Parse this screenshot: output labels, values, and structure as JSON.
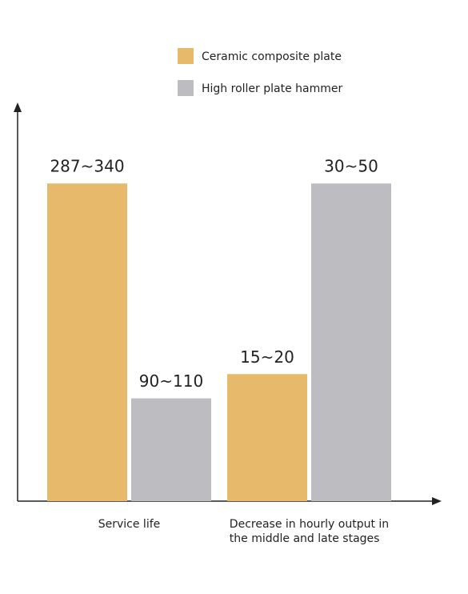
{
  "chart_data": {
    "type": "bar",
    "categories": [
      "Service life",
      "Decrease in hourly output in\nthe middle and late stages"
    ],
    "category_ylims": [
      [
        0,
        425
      ],
      [
        0,
        62.5
      ]
    ],
    "series": [
      {
        "name": "Ceramic composite plate",
        "color": "#e6b96b",
        "values": [
          340,
          20
        ],
        "value_labels": [
          "287~340",
          "15~20"
        ]
      },
      {
        "name": "High roller plate hammer",
        "color": "#bdbdc1",
        "values": [
          110,
          50
        ],
        "value_labels": [
          "90~110",
          "30~50"
        ]
      }
    ],
    "legend": "top"
  }
}
